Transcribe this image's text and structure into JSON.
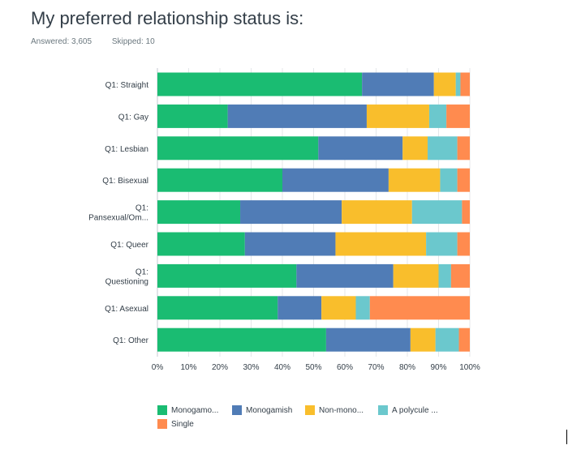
{
  "header": {
    "title": "My preferred relationship status is:",
    "answered_label": "Answered: 3,605",
    "skipped_label": "Skipped: 10"
  },
  "chart_data": {
    "type": "bar",
    "orientation": "horizontal",
    "stacked": true,
    "categories": [
      [
        "Q1: Straight"
      ],
      [
        "Q1: Gay"
      ],
      [
        "Q1: Lesbian"
      ],
      [
        "Q1: Bisexual"
      ],
      [
        "Q1:",
        "Pansexual/Om..."
      ],
      [
        "Q1: Queer"
      ],
      [
        "Q1:",
        "Questioning"
      ],
      [
        "Q1: Asexual"
      ],
      [
        "Q1: Other"
      ]
    ],
    "series": [
      {
        "name": "Monogamo...",
        "color": "#1abc72",
        "values": [
          65.5,
          22.5,
          51.5,
          40,
          26.5,
          28,
          44.5,
          38.5,
          54
        ]
      },
      {
        "name": "Monogamish",
        "color": "#507cb6",
        "values": [
          23,
          44.5,
          27,
          34,
          32.5,
          29,
          31,
          14,
          27
        ]
      },
      {
        "name": "Non-mono...",
        "color": "#f9be2c",
        "values": [
          7,
          20,
          8,
          16.5,
          22.5,
          29,
          14.5,
          11,
          8
        ]
      },
      {
        "name": "A polycule ...",
        "color": "#6bc8cd",
        "values": [
          1.5,
          5.5,
          9.5,
          5.5,
          16,
          10,
          4,
          4.5,
          7.5
        ]
      },
      {
        "name": "Single",
        "color": "#ff8b4f",
        "values": [
          3,
          7.5,
          4,
          4,
          2.5,
          4,
          6,
          32,
          3.5
        ]
      }
    ],
    "xlim": [
      0,
      100
    ],
    "x_ticks": [
      "0%",
      "10%",
      "20%",
      "30%",
      "40%",
      "50%",
      "60%",
      "70%",
      "80%",
      "90%",
      "100%"
    ],
    "grid": true,
    "legend_position": "bottom"
  }
}
